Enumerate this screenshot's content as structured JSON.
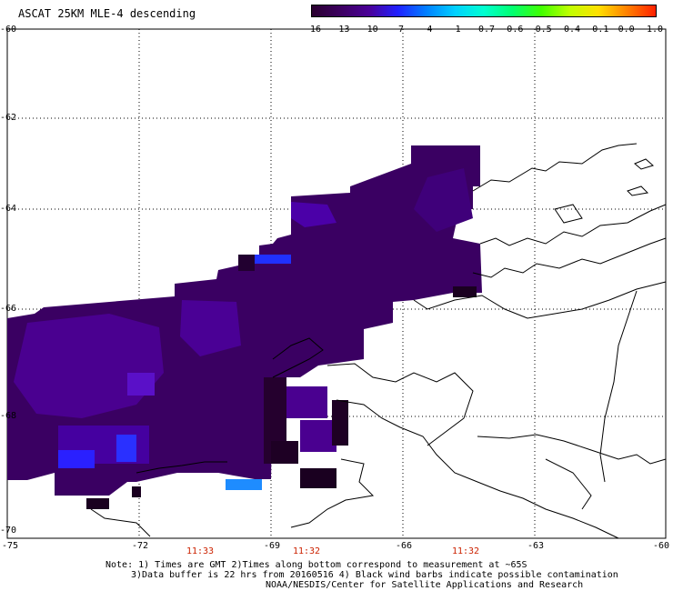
{
  "title": "ASCAT 25KM MLE-4 descending",
  "colorbar": {
    "labels": [
      "-16",
      "-13",
      "-10",
      "-7",
      "-4",
      "-1",
      "-0.7",
      "-0.6",
      "-0.5",
      "-0.4",
      "-0.1",
      "0.0",
      "1.0"
    ],
    "colors": [
      "#2a0030",
      "#3c0060",
      "#4a0098",
      "#2020ff",
      "#0080ff",
      "#00d0ff",
      "#00ffd0",
      "#00ff70",
      "#40ff00",
      "#c0ff00",
      "#ffe000",
      "#ff8000",
      "#ff2000"
    ]
  },
  "map": {
    "lon_labels": [
      "-75",
      "-72",
      "-69",
      "-66",
      "-63",
      "-60"
    ],
    "lat_labels": [
      "-60",
      "-62",
      "-64",
      "-66",
      "-68",
      "-70"
    ],
    "times": [
      "11:33",
      "11:32",
      "11:32"
    ]
  },
  "notes": {
    "line1": "Note: 1) Times are GMT 2)Times along bottom correspond to measurement at ~65S",
    "line2": "3)Data buffer is 22 hrs from 20160516 4) Black wind barbs indicate possible contamination",
    "line3": "NOAA/NESDIS/Center for Satellite Applications and Research"
  }
}
